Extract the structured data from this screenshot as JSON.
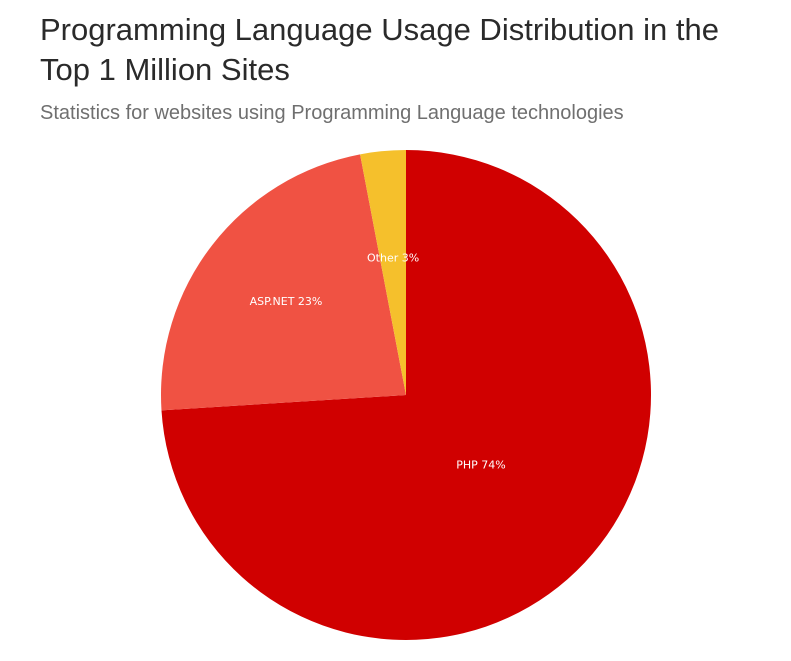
{
  "header": {
    "title": "Programming Language Usage Distribution in the Top 1 Million Sites",
    "subtitle": "Statistics for websites using Programming Language technologies"
  },
  "chart_data": {
    "type": "pie",
    "title": "Programming Language Usage Distribution in the Top 1 Million Sites",
    "subtitle": "Statistics for websites using Programming Language technologies",
    "slices": [
      {
        "label": "PHP",
        "value": 74,
        "display": "PHP 74%",
        "color": "#d00000"
      },
      {
        "label": "ASP.NET",
        "value": 23,
        "display": "ASP.NET 23%",
        "color": "#f05243"
      },
      {
        "label": "Other",
        "value": 3,
        "display": "Other 3%",
        "color": "#f5c02c"
      }
    ],
    "start_angle": "12 o'clock",
    "direction": "clockwise"
  }
}
